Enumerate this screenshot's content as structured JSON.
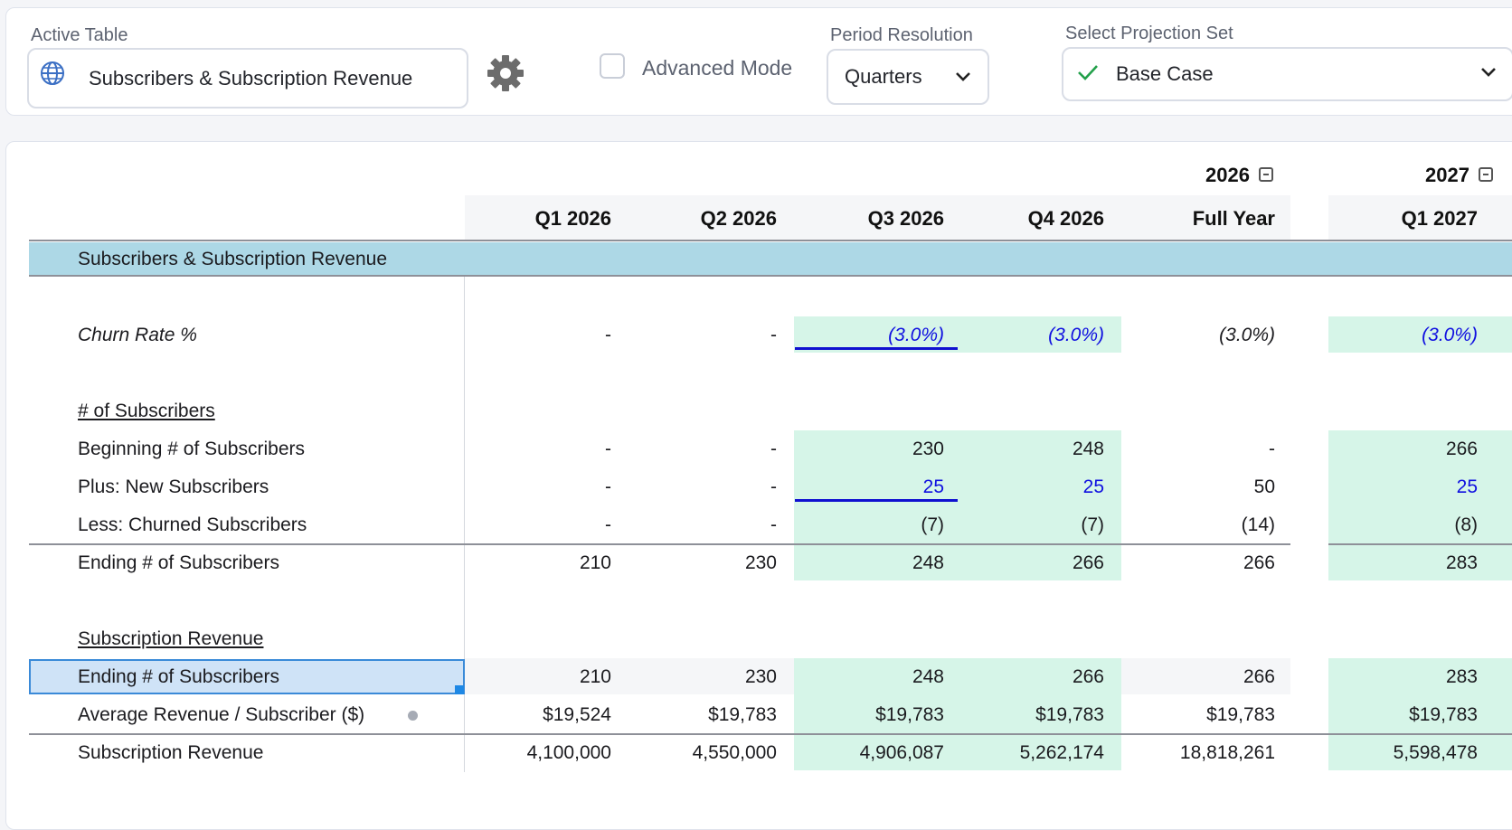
{
  "toolbar": {
    "active_table_label": "Active Table",
    "active_table_value": "Subscribers & Subscription Revenue",
    "advanced_mode_label": "Advanced Mode",
    "period_resolution_label": "Period Resolution",
    "period_resolution_value": "Quarters",
    "projection_set_label": "Select Projection Set",
    "projection_set_value": "Base Case"
  },
  "table": {
    "year_headers": [
      "2026",
      "2027"
    ],
    "columns": [
      "Q1 2026",
      "Q2 2026",
      "Q3 2026",
      "Q4 2026",
      "Full Year",
      "Q1 2027"
    ],
    "section_title": "Subscribers & Subscription Revenue",
    "rows": {
      "churn": {
        "label": "Churn Rate %",
        "values": [
          "-",
          "-",
          "(3.0%)",
          "(3.0%)",
          "(3.0%)",
          "(3.0%)"
        ]
      },
      "subs_header": {
        "label": "# of Subscribers"
      },
      "beginning": {
        "label": "Beginning # of Subscribers",
        "values": [
          "-",
          "-",
          "230",
          "248",
          "-",
          "266"
        ]
      },
      "new": {
        "label": "Plus: New Subscribers",
        "values": [
          "-",
          "-",
          "25",
          "25",
          "50",
          "25"
        ]
      },
      "churned": {
        "label": "Less: Churned Subscribers",
        "values": [
          "-",
          "-",
          "(7)",
          "(7)",
          "(14)",
          "(8)"
        ]
      },
      "ending": {
        "label": "Ending # of Subscribers",
        "values": [
          "210",
          "230",
          "248",
          "266",
          "266",
          "283"
        ]
      },
      "rev_header": {
        "label": "Subscription Revenue"
      },
      "ending2": {
        "label": "Ending # of Subscribers",
        "values": [
          "210",
          "230",
          "248",
          "266",
          "266",
          "283"
        ]
      },
      "arps": {
        "label": "Average Revenue / Subscriber ($)",
        "values": [
          "$19,524",
          "$19,783",
          "$19,783",
          "$19,783",
          "$19,783",
          "$19,783"
        ]
      },
      "revenue": {
        "label": "Subscription Revenue",
        "values": [
          "4,100,000",
          "4,550,000",
          "4,906,087",
          "5,262,174",
          "18,818,261",
          "5,598,478"
        ]
      }
    }
  },
  "colors": {
    "section_band": "#add8e6",
    "input_cell": "#d6f5e8",
    "input_text": "#1010e0",
    "selection": "#cfe3f7"
  },
  "icons": [
    "globe-icon",
    "gear-icon",
    "check-icon",
    "chevron-down-icon",
    "collapse-icon",
    "dot-icon"
  ]
}
